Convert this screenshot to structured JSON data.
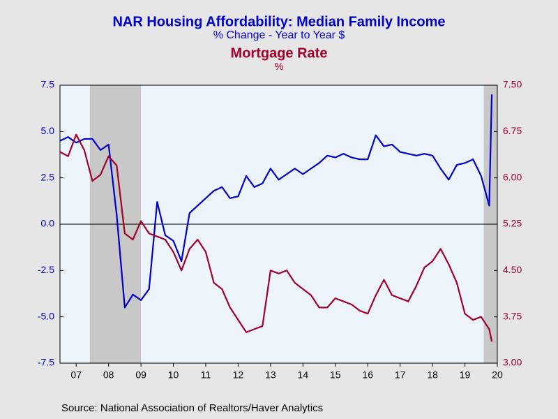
{
  "chart_data": {
    "type": "line",
    "title": "NAR Housing Affordability: Median Family Income",
    "subtitle": "% Change - Year to Year   $",
    "title2": "Mortgage Rate",
    "subtitle2": "%",
    "source": "Source:  National Association of Realtors/Haver Analytics",
    "x": [
      2007,
      2007.25,
      2007.5,
      2007.75,
      2008,
      2008.25,
      2008.5,
      2008.75,
      2009,
      2009.25,
      2009.5,
      2009.75,
      2010,
      2010.25,
      2010.5,
      2010.75,
      2011,
      2011.25,
      2011.5,
      2011.75,
      2012,
      2012.25,
      2012.5,
      2012.75,
      2013,
      2013.25,
      2013.5,
      2013.75,
      2014,
      2014.25,
      2014.5,
      2014.75,
      2015,
      2015.25,
      2015.5,
      2015.75,
      2016,
      2016.25,
      2016.5,
      2016.75,
      2017,
      2017.25,
      2017.5,
      2017.75,
      2018,
      2018.25,
      2018.5,
      2018.75,
      2019,
      2019.25,
      2019.5,
      2019.75,
      2020,
      2020.25,
      2020.33
    ],
    "series": [
      {
        "name": "Median Family Income",
        "color": "#0000cc",
        "axis": "y",
        "values": [
          4.5,
          4.7,
          4.4,
          4.6,
          4.6,
          4.0,
          4.3,
          0.5,
          -4.5,
          -3.8,
          -4.1,
          -3.5,
          1.2,
          -0.6,
          -0.9,
          -2.0,
          0.6,
          1.0,
          1.4,
          1.8,
          2.0,
          1.4,
          1.5,
          2.6,
          2.0,
          2.2,
          3.0,
          2.4,
          2.7,
          3.0,
          2.7,
          3.0,
          3.3,
          3.7,
          3.6,
          3.8,
          3.6,
          3.5,
          3.5,
          4.8,
          4.2,
          4.3,
          3.9,
          3.8,
          3.7,
          3.8,
          3.7,
          3.0,
          2.4,
          3.2,
          3.3,
          3.5,
          2.6,
          1.0,
          7.0
        ]
      },
      {
        "name": "Mortgage Rate",
        "color": "#a0002a",
        "axis": "y2",
        "values": [
          6.42,
          6.35,
          6.7,
          6.45,
          5.95,
          6.05,
          6.35,
          6.2,
          5.1,
          5.0,
          5.3,
          5.1,
          5.05,
          5.0,
          4.8,
          4.5,
          4.85,
          5.0,
          4.8,
          4.3,
          4.2,
          3.9,
          3.7,
          3.5,
          3.55,
          3.6,
          4.5,
          4.45,
          4.5,
          4.3,
          4.2,
          4.1,
          3.9,
          3.9,
          4.05,
          4.0,
          3.95,
          3.85,
          3.8,
          4.1,
          4.35,
          4.1,
          4.05,
          4.0,
          4.25,
          4.55,
          4.65,
          4.85,
          4.6,
          4.3,
          3.8,
          3.7,
          3.75,
          3.55,
          3.35
        ]
      }
    ],
    "xlim": [
      2007,
      2020.5
    ],
    "xticks": [
      {
        "value": 2007.5,
        "label": "07"
      },
      {
        "value": 2008.5,
        "label": "08"
      },
      {
        "value": 2009.5,
        "label": "09"
      },
      {
        "value": 2010.5,
        "label": "10"
      },
      {
        "value": 2011.5,
        "label": "11"
      },
      {
        "value": 2012.5,
        "label": "12"
      },
      {
        "value": 2013.5,
        "label": "13"
      },
      {
        "value": 2014.5,
        "label": "14"
      },
      {
        "value": 2015.5,
        "label": "15"
      },
      {
        "value": 2016.5,
        "label": "16"
      },
      {
        "value": 2017.5,
        "label": "17"
      },
      {
        "value": 2018.5,
        "label": "18"
      },
      {
        "value": 2019.5,
        "label": "19"
      },
      {
        "value": 2020.5,
        "label": "20"
      }
    ],
    "ylim": [
      -7.5,
      7.5
    ],
    "yticks": [
      -7.5,
      {
        "value": -5,
        "label": "-5.0"
      },
      -2.5,
      {
        "value": 0,
        "label": "0.0"
      },
      2.5,
      {
        "value": 5,
        "label": "5.0"
      },
      7.5
    ],
    "y2lim": [
      3,
      7.5
    ],
    "y2ticks": [
      {
        "value": 3,
        "label": "3.00"
      },
      3.75,
      {
        "value": 4.5,
        "label": "4.50"
      },
      5.25,
      {
        "value": 6,
        "label": "6.00"
      },
      6.75,
      {
        "value": 7.5,
        "label": "7.50"
      }
    ],
    "shaded_periods": [
      [
        2007.92,
        2009.5
      ],
      [
        2020.08,
        2020.5
      ]
    ],
    "shade_color": "#c8c8c8",
    "zero_line": true
  }
}
